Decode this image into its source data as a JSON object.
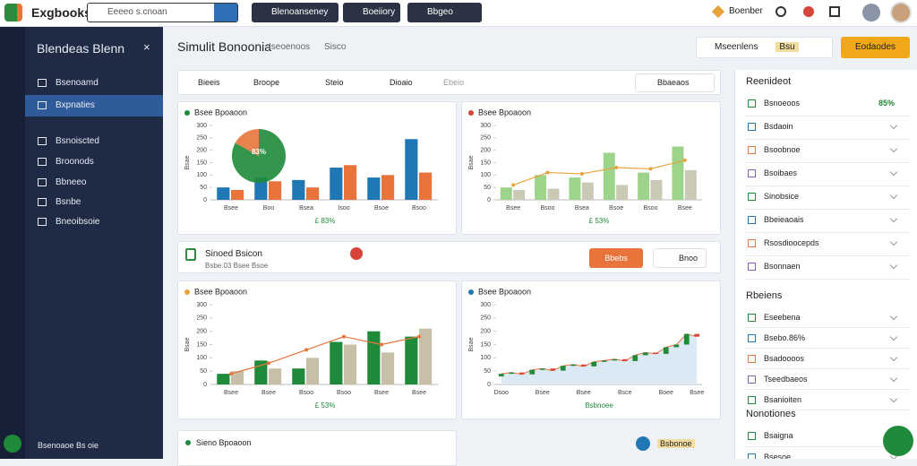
{
  "topbar": {
    "logo": "Exgbooks",
    "search": "Eeeeo s.cnoan",
    "tabs": [
      "Blenoanseney",
      "Boeiiory",
      "Bbgeo"
    ],
    "user": "Boenber"
  },
  "sidebar": {
    "title": "Blendeas Blenn",
    "items": [
      "Bsenoamd",
      "Bxpnaties",
      "Bsnoiscted",
      "Broonods",
      "Bbneeo",
      "Bsnbe",
      "Bneoibsoie"
    ],
    "active": 1,
    "footer": "Bsenoaoe Bs oie"
  },
  "header": {
    "title": "Simulit Bonoonia",
    "subtitle": "Iseoenoos",
    "extra": "Sisco",
    "search": "Mseenlens",
    "select": "Bsu",
    "button": "Eodaodes"
  },
  "toolbar": {
    "tabs": [
      "Bieeis",
      "Broope",
      "Steio",
      "Dioaio",
      "Ebeio"
    ],
    "dropdown": "Bbaeaos"
  },
  "midbar": {
    "title": "Sinoed Bsicon",
    "subtitle": "Bsbe.03 Bsee Bsoe",
    "button": "Bbebs",
    "dropdown": "Bnoo"
  },
  "chart_data": [
    {
      "type": "bar",
      "title": "Bsee Bpoaoon",
      "dot": "#1e8a3a",
      "ylabel": "Bsae",
      "note": "£ 83%",
      "categories": [
        "Bsee",
        "Boo",
        "Bsea",
        "Isoo",
        "Bsoe",
        "Bsoo"
      ],
      "series": [
        {
          "color": "#1f77b4",
          "values": [
            50,
            90,
            80,
            130,
            90,
            245
          ]
        },
        {
          "color": "#e8743b",
          "values": [
            40,
            75,
            50,
            140,
            100,
            110
          ]
        }
      ],
      "ylim": [
        0,
        300
      ],
      "yticks": [
        0,
        50,
        100,
        150,
        200,
        250,
        300
      ],
      "grid": false,
      "pie": {
        "values": [
          83,
          17
        ],
        "colors": [
          "#1e8a3a",
          "#e8743b"
        ],
        "label": "83%"
      }
    },
    {
      "type": "combo",
      "title": "Bsee Bpoaoon",
      "dot": "#d9443a",
      "ylabel": "Bsae",
      "note": "£ 53%",
      "categories": [
        "Bsee",
        "Bsoo",
        "Bsea",
        "Bsoe",
        "Bsoo",
        "Bsee"
      ],
      "series": [
        {
          "kind": "bar",
          "color": "#9bd48a",
          "values": [
            50,
            100,
            90,
            190,
            110,
            215
          ]
        },
        {
          "kind": "bar",
          "color": "#c9c9b6",
          "values": [
            40,
            45,
            70,
            60,
            80,
            120
          ]
        },
        {
          "kind": "line",
          "color": "#e8a33b",
          "values": [
            60,
            110,
            105,
            130,
            125,
            160
          ]
        }
      ],
      "ylim": [
        0,
        300
      ],
      "yticks": [
        0,
        50,
        100,
        150,
        200,
        250,
        300
      ],
      "grid": false
    },
    {
      "type": "combo",
      "title": "Bsee Bpoaoon",
      "dot": "#e8a33b",
      "ylabel": "Bsae",
      "note": "£ 53%",
      "categories": [
        "Bsee",
        "Bsee",
        "Bsoo",
        "Bsoo",
        "Bsee",
        "Bsee"
      ],
      "series": [
        {
          "kind": "bar",
          "color": "#1e8a3a",
          "values": [
            40,
            90,
            60,
            160,
            200,
            180
          ]
        },
        {
          "kind": "bar",
          "color": "#c8bfa8",
          "values": [
            50,
            60,
            100,
            150,
            120,
            210
          ]
        },
        {
          "kind": "line",
          "color": "#e8743b",
          "values": [
            40,
            80,
            130,
            180,
            150,
            180
          ]
        }
      ],
      "ylim": [
        0,
        300
      ],
      "yticks": [
        0,
        50,
        100,
        150,
        200,
        250,
        300
      ],
      "grid": false
    },
    {
      "type": "candlestick",
      "title": "Bsee Bpoaoon",
      "dot": "#1f77b4",
      "ylabel": "Bsae",
      "note": "Bsbnoee",
      "categories": [
        "Dsoo",
        null,
        null,
        null,
        "Bsee",
        null,
        null,
        null,
        "Bsee",
        null,
        null,
        null,
        "Bsce",
        null,
        null,
        null,
        "Boee",
        null,
        null,
        "Bsee"
      ],
      "open": [
        30,
        40,
        45,
        38,
        55,
        60,
        52,
        70,
        75,
        68,
        85,
        90,
        95,
        88,
        110,
        120,
        115,
        140,
        150,
        190
      ],
      "close": [
        40,
        45,
        38,
        55,
        60,
        52,
        70,
        75,
        68,
        85,
        90,
        95,
        88,
        110,
        120,
        115,
        140,
        150,
        190,
        180
      ],
      "up_color": "#1e8a3a",
      "down_color": "#d9443a",
      "line_color": "#e8743b",
      "area_color": "#dbe9f5",
      "ylim": [
        0,
        300
      ],
      "yticks": [
        0,
        50,
        100,
        150,
        200,
        250,
        300
      ],
      "grid": false
    }
  ],
  "bottom": {
    "title": "Sieno Bpoaoon",
    "badge": "Bsbonoe"
  },
  "right": {
    "sections": [
      {
        "title": "Reenideot",
        "items": [
          {
            "label": "Bsnoeoos",
            "value": "85%"
          },
          {
            "label": "Bsdaoin"
          },
          {
            "label": "Bsoobnoe"
          },
          {
            "label": "Bsoibaes"
          },
          {
            "label": "Sinobsice"
          },
          {
            "label": "Bbeieaoais"
          },
          {
            "label": "Rsosdioocepds"
          },
          {
            "label": "Bsonnaen"
          }
        ]
      },
      {
        "title": "Rbeiens",
        "items": [
          {
            "label": "Eseebena"
          },
          {
            "label": "Bsebo.86%"
          },
          {
            "label": "Bsadoooos"
          },
          {
            "label": "Tseedbaeos"
          },
          {
            "label": "Bsanioiten"
          }
        ]
      },
      {
        "title": "Nonotiones",
        "items": [
          {
            "label": "Bsaigna"
          },
          {
            "label": "Bsesoe"
          }
        ]
      }
    ]
  }
}
